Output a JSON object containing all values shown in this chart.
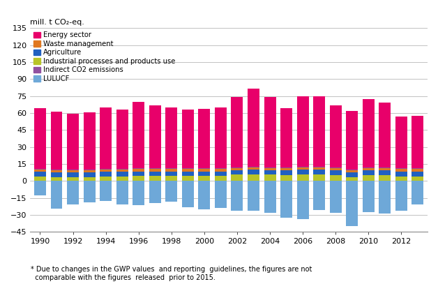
{
  "years": [
    1990,
    1991,
    1992,
    1993,
    1994,
    1995,
    1996,
    1997,
    1998,
    1999,
    2000,
    2001,
    2002,
    2003,
    2004,
    2005,
    2006,
    2007,
    2008,
    2009,
    2010,
    2011,
    2012,
    2013
  ],
  "energy": [
    54.0,
    51.0,
    49.5,
    50.5,
    54.5,
    52.5,
    59.0,
    56.0,
    54.0,
    52.0,
    52.5,
    54.0,
    62.0,
    69.0,
    62.0,
    52.5,
    62.0,
    62.0,
    54.5,
    52.0,
    60.5,
    57.0,
    46.0,
    46.5
  ],
  "waste": [
    2.0,
    2.0,
    2.0,
    2.0,
    2.0,
    2.0,
    2.0,
    2.0,
    2.0,
    2.0,
    2.0,
    2.0,
    2.0,
    2.0,
    2.0,
    2.0,
    2.0,
    2.0,
    2.0,
    2.0,
    2.0,
    2.0,
    2.0,
    2.0
  ],
  "agriculture": [
    4.0,
    4.0,
    4.0,
    4.0,
    4.0,
    4.0,
    4.0,
    4.0,
    4.0,
    4.0,
    4.0,
    4.0,
    4.0,
    4.0,
    4.0,
    4.5,
    4.5,
    4.5,
    4.5,
    4.0,
    4.5,
    4.5,
    4.5,
    4.5
  ],
  "industrial": [
    4.0,
    3.5,
    3.5,
    3.5,
    4.0,
    4.0,
    4.5,
    4.5,
    4.5,
    4.5,
    4.5,
    4.5,
    5.5,
    6.0,
    5.5,
    5.0,
    5.5,
    5.5,
    5.0,
    3.5,
    5.0,
    5.0,
    4.0,
    4.0
  ],
  "indirect": [
    0.5,
    0.5,
    0.5,
    0.5,
    0.5,
    0.5,
    0.5,
    0.5,
    0.5,
    0.5,
    0.5,
    0.5,
    0.5,
    0.5,
    0.5,
    0.5,
    0.5,
    0.5,
    0.5,
    0.5,
    0.5,
    0.5,
    0.5,
    0.5
  ],
  "lulucf": [
    -13.0,
    -24.5,
    -20.5,
    -19.0,
    -17.5,
    -20.5,
    -21.5,
    -19.5,
    -18.5,
    -23.5,
    -25.0,
    -24.0,
    -26.5,
    -26.5,
    -28.0,
    -32.5,
    -33.5,
    -26.0,
    -28.0,
    -40.0,
    -27.5,
    -29.0,
    -26.5,
    -21.0
  ],
  "colors": {
    "energy": "#E8006A",
    "waste": "#E07820",
    "agriculture": "#2060C0",
    "industrial": "#B8C428",
    "indirect": "#9050A0",
    "lulucf": "#6EA8D8"
  },
  "ylabel": "mill. t CO₂-eq.",
  "ylim": [
    -45,
    135
  ],
  "yticks": [
    -45,
    -30,
    -15,
    0,
    15,
    30,
    45,
    60,
    75,
    90,
    105,
    120,
    135
  ],
  "footnote": "* Due to changes in the GWP values  and reporting  guidelines, the figures are not\n  comparable with the figures  released  prior to 2015.",
  "legend_labels": [
    "Energy sector",
    "Waste management",
    "Agriculture",
    "Industrial processes and products use",
    "Indirect CO2 emissions",
    "LULUCF"
  ]
}
